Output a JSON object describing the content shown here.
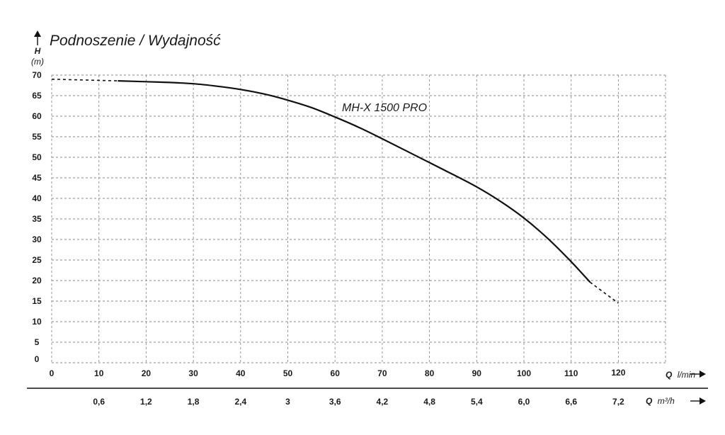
{
  "chart_data": {
    "type": "line",
    "title": "Podnoszenie / Wydajność",
    "ylabel": "H",
    "yunit": "(m)",
    "xlabel": "Q",
    "xunit": "l/min",
    "x2label": "Q",
    "x2unit": "m³/h",
    "ylim": [
      0,
      70
    ],
    "xlim": [
      0,
      120
    ],
    "y_ticks": [
      "70",
      "65",
      "60",
      "55",
      "50",
      "45",
      "40",
      "35",
      "30",
      "25",
      "20",
      "15",
      "10",
      "5",
      "0"
    ],
    "x_ticks": [
      "0",
      "10",
      "20",
      "30",
      "40",
      "50",
      "60",
      "70",
      "80",
      "90",
      "100",
      "110",
      "120"
    ],
    "x2_ticks": [
      "0,6",
      "1,2",
      "1,8",
      "2,4",
      "3",
      "3,6",
      "4,2",
      "4,8",
      "5,4",
      "6,0",
      "6,6",
      "7,2"
    ],
    "grid": true,
    "series": [
      {
        "name": "MH-X 1500 PRO",
        "x": [
          14,
          20,
          25,
          30,
          35,
          40,
          45,
          50,
          55,
          60,
          65,
          70,
          75,
          80,
          85,
          90,
          95,
          100,
          105,
          110,
          114
        ],
        "y": [
          68.6,
          68.4,
          68.2,
          67.9,
          67.3,
          66.5,
          65.4,
          63.9,
          62.1,
          59.8,
          57.3,
          54.5,
          51.6,
          48.7,
          45.8,
          42.8,
          39.3,
          35.2,
          30.3,
          24.6,
          19.6
        ]
      }
    ],
    "extrapolated": [
      {
        "x": [
          0,
          14
        ],
        "y": [
          69,
          68.6
        ]
      },
      {
        "x": [
          114,
          120
        ],
        "y": [
          19.6,
          14.5
        ]
      }
    ]
  }
}
